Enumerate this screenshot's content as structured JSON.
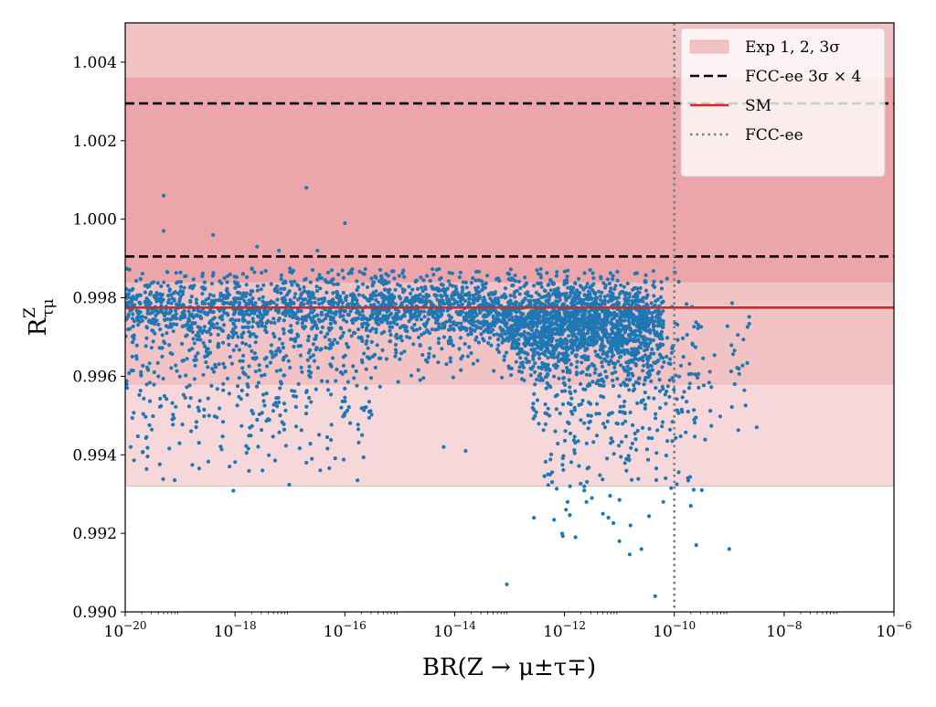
{
  "chart_data": {
    "type": "scatter",
    "title": "",
    "xlabel": "BR(Z → μ±τ∓)",
    "ylabel": "R",
    "ylabel_sup": "Z",
    "ylabel_sub": "τμ",
    "x_scale": "log",
    "xlim_log10": [
      -20,
      -6
    ],
    "ylim": [
      0.99,
      1.005
    ],
    "x_ticks": [
      {
        "exp": -20,
        "base": "10",
        "sup": "−20"
      },
      {
        "exp": -18,
        "base": "10",
        "sup": "−18"
      },
      {
        "exp": -16,
        "base": "10",
        "sup": "−16"
      },
      {
        "exp": -14,
        "base": "10",
        "sup": "−14"
      },
      {
        "exp": -12,
        "base": "10",
        "sup": "−12"
      },
      {
        "exp": -10,
        "base": "10",
        "sup": "−10"
      },
      {
        "exp": -8,
        "base": "10",
        "sup": "−8"
      },
      {
        "exp": -6,
        "base": "10",
        "sup": "−6"
      }
    ],
    "y_ticks": [
      {
        "value": 0.99,
        "label": "0.990"
      },
      {
        "value": 0.992,
        "label": "0.992"
      },
      {
        "value": 0.994,
        "label": "0.994"
      },
      {
        "value": 0.996,
        "label": "0.996"
      },
      {
        "value": 0.998,
        "label": "0.998"
      },
      {
        "value": 1.0,
        "label": "1.000"
      },
      {
        "value": 1.002,
        "label": "1.002"
      },
      {
        "value": 1.004,
        "label": "1.004"
      }
    ],
    "exp_bands": [
      {
        "sigma": 3,
        "y0": 0.9932,
        "y1": 1.005,
        "color": "#f7d8da"
      },
      {
        "sigma": 2,
        "y0": 0.9958,
        "y1": 1.005,
        "color": "#f2c3c5"
      },
      {
        "sigma": 1,
        "y0": 0.9984,
        "y1": 1.0036,
        "color": "#eca6a9"
      }
    ],
    "fcc_lines": [
      0.99905,
      1.00295
    ],
    "sm_value": 0.99775,
    "fcc_vline_log10": -10,
    "scatter_clusters": [
      {
        "count": 850,
        "x_log10": [
          -20,
          -13.5
        ],
        "y_center": 0.99775,
        "y_spread": 0.00032
      },
      {
        "count": 520,
        "x_log10": [
          -20,
          -15.5
        ],
        "y_center": 0.9972,
        "y_spread": 0.0011
      },
      {
        "count": 220,
        "x_log10": [
          -20,
          -15.5
        ],
        "y_center": 0.9958,
        "y_spread": 0.0012
      },
      {
        "count": 420,
        "x_log10": [
          -15.5,
          -13.0
        ],
        "y_center": 0.9976,
        "y_spread": 0.0007
      },
      {
        "count": 700,
        "x_log10": [
          -13.5,
          -10.5
        ],
        "y_center": 0.99755,
        "y_spread": 0.00045
      },
      {
        "count": 950,
        "x_log10": [
          -13.0,
          -10.2
        ],
        "y_center": 0.99715,
        "y_spread": 0.0006
      },
      {
        "count": 320,
        "x_log10": [
          -12.6,
          -10.0
        ],
        "y_center": 0.9965,
        "y_spread": 0.0012
      },
      {
        "count": 160,
        "x_log10": [
          -12.4,
          -9.6
        ],
        "y_center": 0.9948,
        "y_spread": 0.0014
      },
      {
        "count": 60,
        "x_log10": [
          -10.0,
          -8.6
        ],
        "y_center": 0.9963,
        "y_spread": 0.0011
      }
    ],
    "scatter_outliers": [
      [
        -19.3,
        1.0006
      ],
      [
        -19.3,
        0.9997
      ],
      [
        -18.4,
        0.9996
      ],
      [
        -16.7,
        1.0008
      ],
      [
        -16.0,
        0.9999
      ],
      [
        -17.6,
        0.9993
      ],
      [
        -17.2,
        0.9992
      ],
      [
        -16.5,
        0.9992
      ],
      [
        -18.1,
        0.9937
      ],
      [
        -17.5,
        0.9936
      ],
      [
        -16.7,
        0.9938
      ],
      [
        -16.6,
        0.9939
      ],
      [
        -19.9,
        0.9942
      ],
      [
        -18.8,
        0.9946
      ],
      [
        -13.05,
        0.9907
      ],
      [
        -10.35,
        0.9904
      ],
      [
        -11.8,
        0.9919
      ],
      [
        -11.3,
        0.9925
      ],
      [
        -11.0,
        0.9918
      ],
      [
        -10.6,
        0.9916
      ],
      [
        -9.6,
        0.9917
      ],
      [
        -9.0,
        0.9916
      ],
      [
        -10.8,
        0.9922
      ],
      [
        -11.6,
        0.9928
      ],
      [
        -11.2,
        0.9924
      ],
      [
        -10.2,
        0.9928
      ],
      [
        -9.7,
        0.9927
      ],
      [
        -9.5,
        0.9931
      ],
      [
        -12.3,
        0.9935
      ],
      [
        -11.9,
        0.9932
      ],
      [
        -8.5,
        0.9947
      ],
      [
        -8.9,
        0.9958
      ],
      [
        -13.8,
        0.9941
      ],
      [
        -14.2,
        0.9942
      ],
      [
        -10.9,
        0.9958
      ],
      [
        -11.5,
        0.9929
      ]
    ],
    "series": [
      {
        "kind": "scatter",
        "color": "#1f77b4"
      }
    ],
    "legend": {
      "placement": "top-right",
      "entries": [
        {
          "label": "Exp 1, 2, 3σ",
          "kind": "band",
          "color": "#f2c3c5"
        },
        {
          "label": "FCC-ee 3σ × 4",
          "kind": "dashed",
          "color": "#000000"
        },
        {
          "label": "SM",
          "kind": "solid",
          "color": "#d62728"
        },
        {
          "label": "FCC-ee",
          "kind": "dotted",
          "color": "#7f7f7f"
        }
      ]
    },
    "grid": false
  }
}
